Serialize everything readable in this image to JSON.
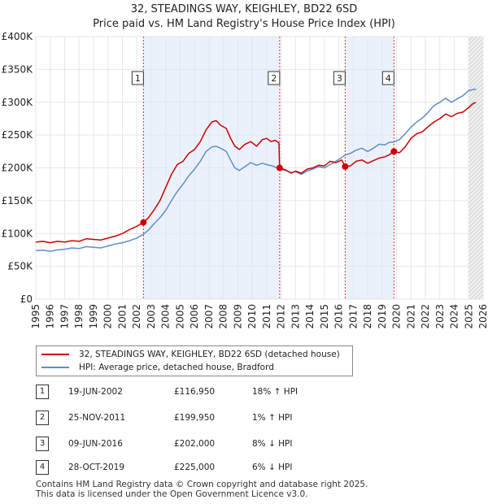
{
  "title_line1": "32, STEADINGS WAY, KEIGHLEY, BD22 6SD",
  "title_line2": "Price paid vs. HM Land Registry's House Price Index (HPI)",
  "chart_data": {
    "type": "line",
    "xlim": [
      1995,
      2026
    ],
    "ylim": [
      0,
      400000
    ],
    "y_ticks": [
      {
        "value": 0,
        "label": "£0"
      },
      {
        "value": 50000,
        "label": "£50K"
      },
      {
        "value": 100000,
        "label": "£100K"
      },
      {
        "value": 150000,
        "label": "£150K"
      },
      {
        "value": 200000,
        "label": "£200K"
      },
      {
        "value": 250000,
        "label": "£250K"
      },
      {
        "value": 300000,
        "label": "£300K"
      },
      {
        "value": 350000,
        "label": "£350K"
      },
      {
        "value": 400000,
        "label": "£400K"
      }
    ],
    "x_ticks": [
      "1995",
      "1996",
      "1997",
      "1998",
      "1999",
      "2000",
      "2001",
      "2002",
      "2003",
      "2004",
      "2005",
      "2006",
      "2007",
      "2008",
      "2009",
      "2010",
      "2011",
      "2012",
      "2013",
      "2014",
      "2015",
      "2016",
      "2017",
      "2018",
      "2019",
      "2020",
      "2021",
      "2022",
      "2023",
      "2024",
      "2025",
      "2026"
    ],
    "series": [
      {
        "name": "32, STEADINGS WAY, KEIGHLEY, BD22 6SD (detached house)",
        "color": "#cc0000",
        "points": [
          [
            1995.0,
            87000
          ],
          [
            1995.5,
            88000
          ],
          [
            1996.0,
            86000
          ],
          [
            1996.5,
            88000
          ],
          [
            1997.0,
            87000
          ],
          [
            1997.5,
            89000
          ],
          [
            1998.0,
            88000
          ],
          [
            1998.5,
            92000
          ],
          [
            1999.0,
            91000
          ],
          [
            1999.5,
            90000
          ],
          [
            2000.0,
            93000
          ],
          [
            2000.5,
            96000
          ],
          [
            2001.0,
            100000
          ],
          [
            2001.5,
            106000
          ],
          [
            2002.0,
            111000
          ],
          [
            2002.46,
            116950
          ],
          [
            2002.8,
            124000
          ],
          [
            2003.2,
            136000
          ],
          [
            2003.6,
            150000
          ],
          [
            2004.0,
            170000
          ],
          [
            2004.4,
            190000
          ],
          [
            2004.8,
            205000
          ],
          [
            2005.2,
            210000
          ],
          [
            2005.6,
            222000
          ],
          [
            2006.0,
            228000
          ],
          [
            2006.4,
            240000
          ],
          [
            2006.8,
            258000
          ],
          [
            2007.2,
            270000
          ],
          [
            2007.5,
            272000
          ],
          [
            2007.8,
            265000
          ],
          [
            2008.2,
            260000
          ],
          [
            2008.5,
            245000
          ],
          [
            2008.8,
            233000
          ],
          [
            2009.1,
            228000
          ],
          [
            2009.5,
            236000
          ],
          [
            2009.9,
            240000
          ],
          [
            2010.3,
            233000
          ],
          [
            2010.7,
            243000
          ],
          [
            2011.0,
            245000
          ],
          [
            2011.3,
            240000
          ],
          [
            2011.6,
            242000
          ],
          [
            2011.85,
            238000
          ],
          [
            2011.9,
            199950
          ],
          [
            2012.3,
            197000
          ],
          [
            2012.7,
            192000
          ],
          [
            2013.0,
            195000
          ],
          [
            2013.4,
            192000
          ],
          [
            2013.8,
            198000
          ],
          [
            2014.2,
            200000
          ],
          [
            2014.6,
            204000
          ],
          [
            2015.0,
            203000
          ],
          [
            2015.4,
            210000
          ],
          [
            2015.8,
            208000
          ],
          [
            2016.2,
            212000
          ],
          [
            2016.44,
            202000
          ],
          [
            2016.8,
            203000
          ],
          [
            2017.2,
            210000
          ],
          [
            2017.6,
            212000
          ],
          [
            2018.0,
            207000
          ],
          [
            2018.4,
            211000
          ],
          [
            2018.8,
            215000
          ],
          [
            2019.2,
            217000
          ],
          [
            2019.5,
            220000
          ],
          [
            2019.82,
            225000
          ],
          [
            2020.2,
            223000
          ],
          [
            2020.6,
            232000
          ],
          [
            2021.0,
            245000
          ],
          [
            2021.4,
            252000
          ],
          [
            2021.8,
            255000
          ],
          [
            2022.2,
            263000
          ],
          [
            2022.6,
            270000
          ],
          [
            2023.0,
            275000
          ],
          [
            2023.4,
            282000
          ],
          [
            2023.8,
            278000
          ],
          [
            2024.2,
            283000
          ],
          [
            2024.6,
            285000
          ],
          [
            2025.0,
            292000
          ],
          [
            2025.3,
            298000
          ],
          [
            2025.5,
            300000
          ]
        ]
      },
      {
        "name": "HPI: Average price, detached house, Bradford",
        "color": "#5f8ecb",
        "points": [
          [
            1995.0,
            74000
          ],
          [
            1995.5,
            74500
          ],
          [
            1996.0,
            73000
          ],
          [
            1996.5,
            75000
          ],
          [
            1997.0,
            76000
          ],
          [
            1997.5,
            78000
          ],
          [
            1998.0,
            77000
          ],
          [
            1998.5,
            80000
          ],
          [
            1999.0,
            79000
          ],
          [
            1999.5,
            78000
          ],
          [
            2000.0,
            81000
          ],
          [
            2000.5,
            84000
          ],
          [
            2001.0,
            86000
          ],
          [
            2001.5,
            89000
          ],
          [
            2002.0,
            93000
          ],
          [
            2002.46,
            98800
          ],
          [
            2002.8,
            105000
          ],
          [
            2003.2,
            115000
          ],
          [
            2003.6,
            124000
          ],
          [
            2004.0,
            135000
          ],
          [
            2004.4,
            150000
          ],
          [
            2004.8,
            164000
          ],
          [
            2005.2,
            175000
          ],
          [
            2005.6,
            188000
          ],
          [
            2006.0,
            198000
          ],
          [
            2006.4,
            210000
          ],
          [
            2006.8,
            225000
          ],
          [
            2007.2,
            232000
          ],
          [
            2007.5,
            233000
          ],
          [
            2007.8,
            230000
          ],
          [
            2008.2,
            225000
          ],
          [
            2008.5,
            212000
          ],
          [
            2008.8,
            200000
          ],
          [
            2009.1,
            196000
          ],
          [
            2009.5,
            202000
          ],
          [
            2009.9,
            208000
          ],
          [
            2010.3,
            204000
          ],
          [
            2010.7,
            207000
          ],
          [
            2011.0,
            205000
          ],
          [
            2011.4,
            203000
          ],
          [
            2011.9,
            198000
          ],
          [
            2012.3,
            196000
          ],
          [
            2012.7,
            193000
          ],
          [
            2013.0,
            194000
          ],
          [
            2013.4,
            190000
          ],
          [
            2013.8,
            195000
          ],
          [
            2014.2,
            198000
          ],
          [
            2014.6,
            202000
          ],
          [
            2015.0,
            200000
          ],
          [
            2015.4,
            205000
          ],
          [
            2015.8,
            210000
          ],
          [
            2016.44,
            219600
          ],
          [
            2016.8,
            222000
          ],
          [
            2017.2,
            227000
          ],
          [
            2017.6,
            230000
          ],
          [
            2018.0,
            225000
          ],
          [
            2018.4,
            230000
          ],
          [
            2018.8,
            236000
          ],
          [
            2019.2,
            235000
          ],
          [
            2019.5,
            239000
          ],
          [
            2019.82,
            239400
          ],
          [
            2020.2,
            243000
          ],
          [
            2020.6,
            252000
          ],
          [
            2021.0,
            262000
          ],
          [
            2021.4,
            270000
          ],
          [
            2021.8,
            276000
          ],
          [
            2022.2,
            285000
          ],
          [
            2022.6,
            295000
          ],
          [
            2023.0,
            300000
          ],
          [
            2023.4,
            306000
          ],
          [
            2023.8,
            300000
          ],
          [
            2024.2,
            305000
          ],
          [
            2024.6,
            310000
          ],
          [
            2025.0,
            318000
          ],
          [
            2025.5,
            320000
          ]
        ]
      }
    ],
    "transactions": [
      {
        "id": "1",
        "x": 2002.46,
        "y": 116950,
        "label": "1"
      },
      {
        "id": "2",
        "x": 2011.9,
        "y": 199950,
        "label": "2"
      },
      {
        "id": "3",
        "x": 2016.44,
        "y": 202000,
        "label": "3"
      },
      {
        "id": "4",
        "x": 2019.82,
        "y": 225000,
        "label": "4"
      }
    ],
    "shaded_spans": [
      [
        2002.46,
        2011.9
      ],
      [
        2016.44,
        2019.82
      ]
    ],
    "forecast_from": 2025.0
  },
  "legend": [
    {
      "label": "32, STEADINGS WAY, KEIGHLEY, BD22 6SD (detached house)",
      "color": "#cc0000"
    },
    {
      "label": "HPI: Average price, detached house, Bradford",
      "color": "#5f8ecb"
    }
  ],
  "transactions_table": [
    {
      "num": "1",
      "date": "19-JUN-2002",
      "price": "£116,950",
      "hpi": "18% ↑ HPI"
    },
    {
      "num": "2",
      "date": "25-NOV-2011",
      "price": "£199,950",
      "hpi": "1% ↑ HPI"
    },
    {
      "num": "3",
      "date": "09-JUN-2016",
      "price": "£202,000",
      "hpi": "8% ↓ HPI"
    },
    {
      "num": "4",
      "date": "28-OCT-2019",
      "price": "£225,000",
      "hpi": "6% ↓ HPI"
    }
  ],
  "footer_line1": "Contains HM Land Registry data © Crown copyright and database right 2025.",
  "footer_line2": "This data is licensed under the Open Government Licence v3.0."
}
